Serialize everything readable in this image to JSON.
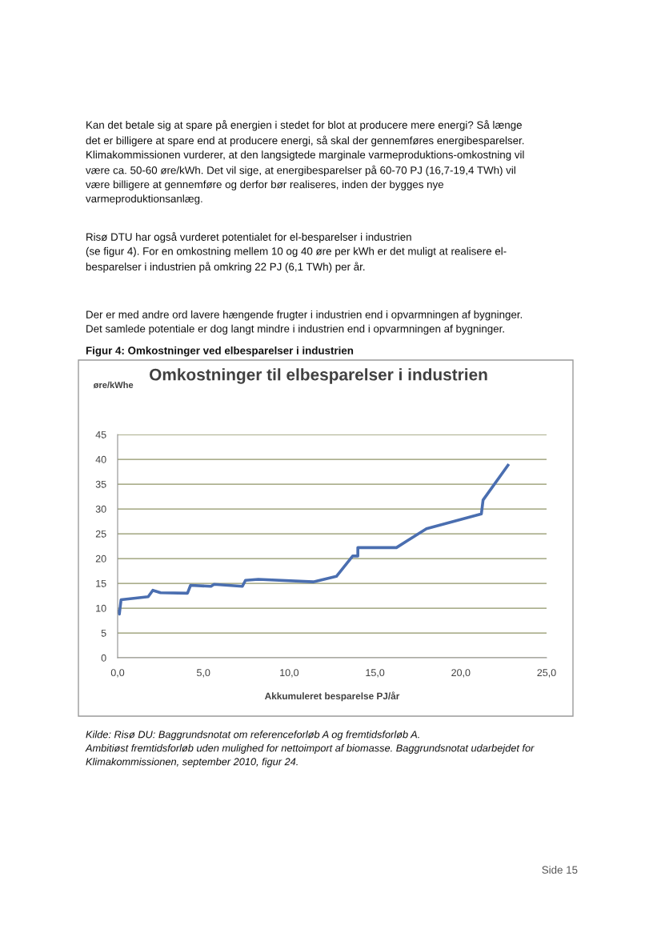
{
  "chart_data": {
    "type": "line",
    "title": "Omkostninger til elbesparelser i industrien",
    "ylabel": "øre/kWhe",
    "xlabel": "Akkumuleret besparelse PJ/år",
    "annotations": [
      "Kan det betale sig at spare på energien i stedet for blot at producere mere energi? Så længe\ndet er billigere at spare end at producere energi, så skal der gennemføres energibesparelser.\nKlimakommissionen vurderer, at den langsigtede marginale varmeproduktions-omkostning vil\nvære ca. 50-60 øre/kWh. Det vil sige, at energibesparelser på 60-70 PJ (16,7-19,4 TWh) vil\nvære billigere at gennemføre og derfor bør realiseres, inden der bygges nye\nvarmeproduktionsanlæg.",
      "Risø DTU har også vurderet potentialet for el-besparelser i industrien\n(se figur 4). For en omkostning mellem 10 og 40 øre per kWh er det muligt at realisere el-\nbesparelser i industrien på omkring 22 PJ (6,1 TWh) per år.",
      "Der er med andre ord lavere hængende frugter i industrien end i opvarmningen af bygninger.\nDet samlede potentiale er dog langt mindre i industrien end i opvarmningen af bygninger.",
      "Figur 4: Omkostninger ved elbesparelser i industrien",
      "Kilde: Risø DU: Baggrundsnotat om referenceforløb A og fremtidsforløb A.\nAmbitiøst fremtidsforløb uden mulighed for nettoimport af biomasse. Baggrundsnotat udarbejdet for\nKlimakommissionen, september 2010, figur 24.",
      "Side 15"
    ],
    "series": [
      {
        "color": "#4a6eb0",
        "x": [
          0.05,
          0.1,
          0.2,
          1.78,
          2.05,
          2.5,
          4.07,
          4.25,
          5.44,
          5.62,
          7.27,
          7.45,
          8.2,
          11.4,
          12.75,
          13.7,
          14.0,
          14.0,
          16.25,
          18.0,
          21.2,
          21.3,
          22.75
        ],
        "values": [
          9.5,
          8.8,
          11.7,
          12.3,
          13.6,
          13.1,
          13.0,
          14.6,
          14.4,
          14.8,
          14.4,
          15.6,
          15.8,
          15.3,
          16.4,
          20.5,
          20.5,
          22.2,
          22.2,
          26.0,
          29.0,
          31.8,
          38.8
        ]
      }
    ],
    "xlim": [
      0,
      25
    ],
    "ylim": [
      0,
      45
    ],
    "xticks": [
      {
        "value": 0,
        "label": "0,0"
      },
      {
        "value": 5,
        "label": "5,0"
      },
      {
        "value": 10,
        "label": "10,0"
      },
      {
        "value": 15,
        "label": "15,0"
      },
      {
        "value": 20,
        "label": "20,0"
      },
      {
        "value": 25,
        "label": "25,0"
      }
    ],
    "yticks": [
      0,
      5,
      10,
      15,
      20,
      25,
      30,
      35,
      40,
      45
    ],
    "grid": "y",
    "marker": "none",
    "line_style": "solid"
  }
}
